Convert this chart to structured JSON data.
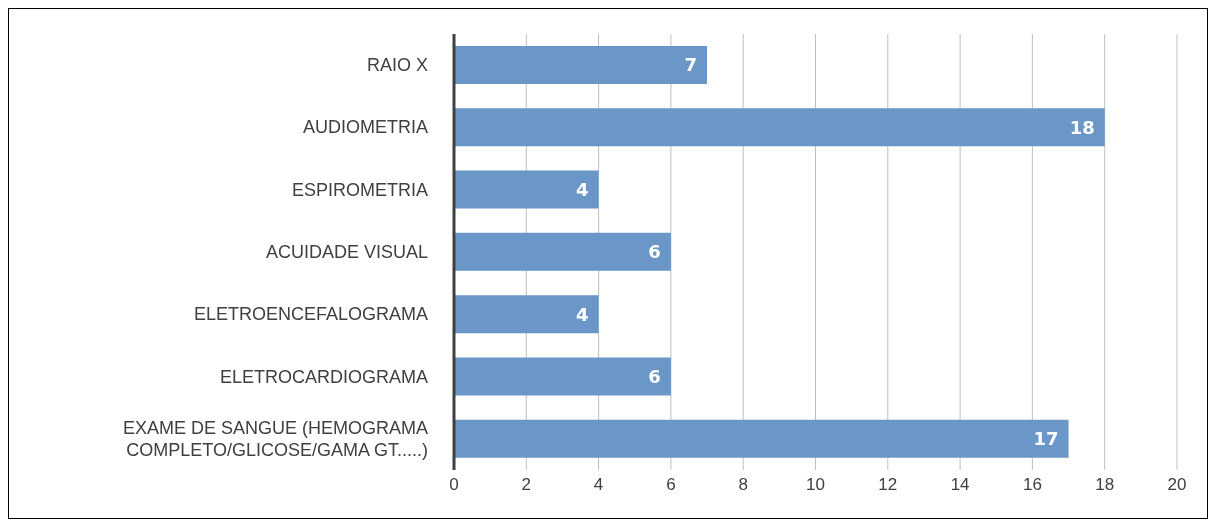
{
  "chart_data": {
    "type": "bar",
    "orientation": "horizontal",
    "categories": [
      "RAIO X",
      "AUDIOMETRIA",
      "ESPIROMETRIA",
      "ACUIDADE VISUAL",
      "ELETROENCEFALOGRAMA",
      "ELETROCARDIOGRAMA",
      "EXAME DE SANGUE (HEMOGRAMA COMPLETO/GLICOSE/GAMA GT.....)"
    ],
    "values": [
      7,
      18,
      4,
      6,
      4,
      6,
      17
    ],
    "color": "#6a96c8",
    "xlim": [
      0,
      20
    ],
    "xticks": [
      0,
      2,
      4,
      6,
      8,
      10,
      12,
      14,
      16,
      18,
      20
    ],
    "grid": "x",
    "data_labels": true
  }
}
